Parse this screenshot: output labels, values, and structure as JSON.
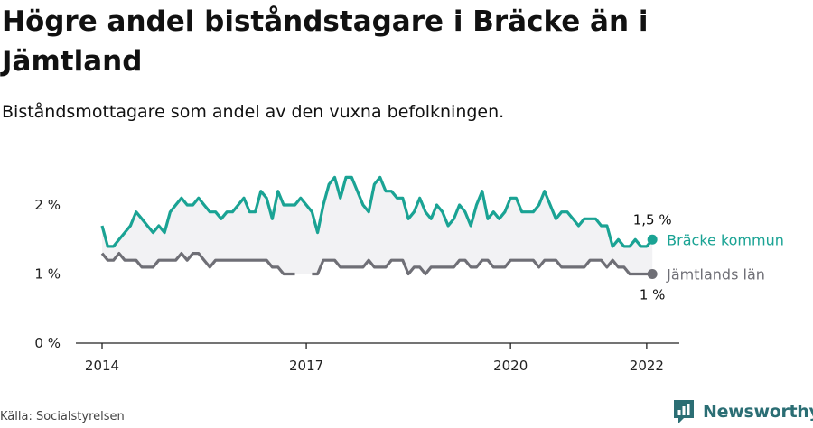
{
  "title": "Högre andel biståndstagare i Bräcke än i Jämtland",
  "subtitle": "Biståndsmottagare som andel av den vuxna befolkningen.",
  "source": "Källa: Socialstyrelsen",
  "brand": {
    "name": "Newsworthy",
    "icon": "newsworthy-logo-icon",
    "color": "#2b6e74"
  },
  "colors": {
    "bracke": "#1aa394",
    "jamtland": "#6f6f76",
    "band": "#f2f2f4",
    "axis": "#222222"
  },
  "chart_data": {
    "type": "line",
    "title": "Högre andel biståndstagare i Bräcke än i Jämtland",
    "subtitle": "Biståndsmottagare som andel av den vuxna befolkningen.",
    "xlabel": "",
    "ylabel": "",
    "ylim": [
      0,
      2.6
    ],
    "yticks": [
      0,
      1,
      2
    ],
    "ytick_labels": [
      "0 %",
      "1 %",
      "2 %"
    ],
    "xticks": [
      2014,
      2017,
      2020,
      2022
    ],
    "xtick_labels": [
      "2014",
      "2017",
      "2020",
      "2022"
    ],
    "x_start": "2014-01",
    "x_step": "month",
    "grid": false,
    "legend": "end-of-line labels",
    "series": [
      {
        "name": "Bräcke kommun",
        "key": "bracke",
        "end_label": "1,5 %",
        "values": [
          1.7,
          1.4,
          1.4,
          1.5,
          1.6,
          1.7,
          1.9,
          1.8,
          1.7,
          1.6,
          1.7,
          1.6,
          1.9,
          2.0,
          2.1,
          2.0,
          2.0,
          2.1,
          2.0,
          1.9,
          1.9,
          1.8,
          1.9,
          1.9,
          2.0,
          2.1,
          1.9,
          1.9,
          2.2,
          2.1,
          1.8,
          2.2,
          2.0,
          2.0,
          2.0,
          2.1,
          2.0,
          1.9,
          1.6,
          2.0,
          2.3,
          2.4,
          2.1,
          2.4,
          2.4,
          2.2,
          2.0,
          1.9,
          2.3,
          2.4,
          2.2,
          2.2,
          2.1,
          2.1,
          1.8,
          1.9,
          2.1,
          1.9,
          1.8,
          2.0,
          1.9,
          1.7,
          1.8,
          2.0,
          1.9,
          1.7,
          2.0,
          2.2,
          1.8,
          1.9,
          1.8,
          1.9,
          2.1,
          2.1,
          1.9,
          1.9,
          1.9,
          2.0,
          2.2,
          2.0,
          1.8,
          1.9,
          1.9,
          1.8,
          1.7,
          1.8,
          1.8,
          1.8,
          1.7,
          1.7,
          1.4,
          1.5,
          1.4,
          1.4,
          1.5,
          1.4,
          1.4,
          1.5
        ]
      },
      {
        "name": "Jämtlands län",
        "key": "jamtland",
        "end_label": "1 %",
        "values": [
          1.3,
          1.2,
          1.2,
          1.3,
          1.2,
          1.2,
          1.2,
          1.1,
          1.1,
          1.1,
          1.2,
          1.2,
          1.2,
          1.2,
          1.3,
          1.2,
          1.3,
          1.3,
          1.2,
          1.1,
          1.2,
          1.2,
          1.2,
          1.2,
          1.2,
          1.2,
          1.2,
          1.2,
          1.2,
          1.2,
          1.1,
          1.1,
          1.0,
          1.0,
          1.0,
          null,
          null,
          1.0,
          1.0,
          1.2,
          1.2,
          1.2,
          1.1,
          1.1,
          1.1,
          1.1,
          1.1,
          1.2,
          1.1,
          1.1,
          1.1,
          1.2,
          1.2,
          1.2,
          1.0,
          1.1,
          1.1,
          1.0,
          1.1,
          1.1,
          1.1,
          1.1,
          1.1,
          1.2,
          1.2,
          1.1,
          1.1,
          1.2,
          1.2,
          1.1,
          1.1,
          1.1,
          1.2,
          1.2,
          1.2,
          1.2,
          1.2,
          1.1,
          1.2,
          1.2,
          1.2,
          1.1,
          1.1,
          1.1,
          1.1,
          1.1,
          1.2,
          1.2,
          1.2,
          1.1,
          1.2,
          1.1,
          1.1,
          1.0,
          1.0,
          1.0,
          1.0,
          1.0
        ]
      }
    ]
  }
}
